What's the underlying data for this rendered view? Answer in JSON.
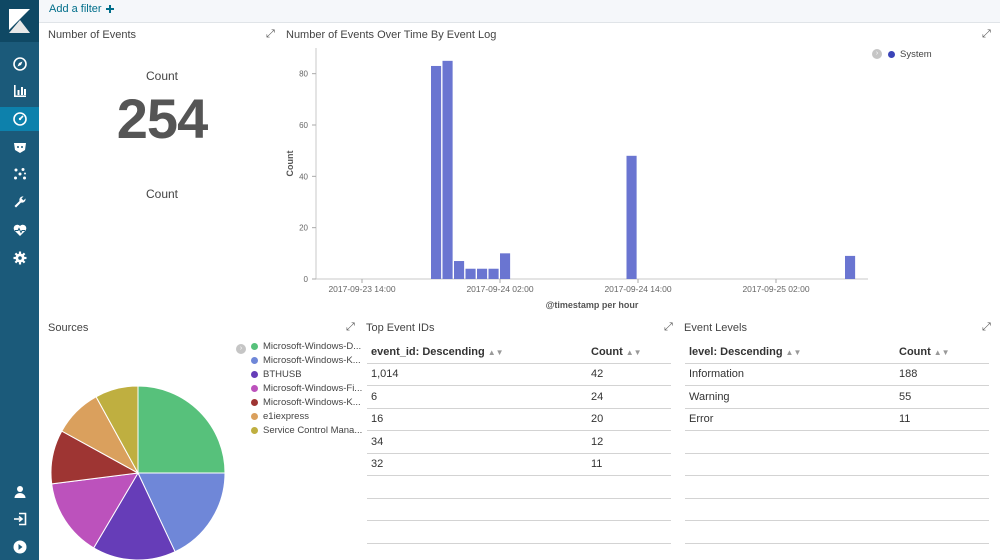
{
  "filter_bar": {
    "add_filter_label": "Add a filter",
    "add_icon": "plus-icon"
  },
  "sidebar": {
    "logo": "kibana-logo",
    "items": [
      {
        "icon": "compass-icon",
        "label": "Discover"
      },
      {
        "icon": "bar-chart-icon",
        "label": "Visualize"
      },
      {
        "icon": "dashboard-icon",
        "label": "Dashboard",
        "active": true
      },
      {
        "icon": "timelion-icon",
        "label": "Timelion"
      },
      {
        "icon": "graph-icon",
        "label": "Graph"
      },
      {
        "icon": "wrench-icon",
        "label": "Dev Tools"
      },
      {
        "icon": "heartbeat-icon",
        "label": "Monitoring"
      },
      {
        "icon": "gear-icon",
        "label": "Management"
      }
    ],
    "bottom": [
      {
        "icon": "user-icon",
        "label": "User"
      },
      {
        "icon": "logout-icon",
        "label": "Logout"
      },
      {
        "icon": "collapse-icon",
        "label": "Collapse"
      }
    ]
  },
  "panels": {
    "events": {
      "title": "Number of Events",
      "label_top": "Count",
      "value": "254",
      "label_bottom": "Count"
    },
    "timeline": {
      "title": "Number of Events Over Time By Event Log"
    },
    "sources": {
      "title": "Sources"
    },
    "top_ids": {
      "title": "Top Event IDs"
    },
    "levels": {
      "title": "Event Levels"
    }
  },
  "chart_data": [
    {
      "type": "bar",
      "title": "Number of Events Over Time By Event Log",
      "xlabel": "@timestamp per hour",
      "ylabel": "Count",
      "ylim": [
        0,
        90
      ],
      "yticks": [
        0,
        20,
        40,
        60,
        80
      ],
      "xticks": [
        "2017-09-23 14:00",
        "2017-09-24 02:00",
        "2017-09-24 14:00",
        "2017-09-25 02:00"
      ],
      "legend_position": "top-right",
      "series": [
        {
          "name": "System",
          "color": "#6a75d1",
          "points": [
            {
              "x": "2017-09-23 20:00",
              "y": 83
            },
            {
              "x": "2017-09-23 21:00",
              "y": 85
            },
            {
              "x": "2017-09-23 22:00",
              "y": 7
            },
            {
              "x": "2017-09-23 23:00",
              "y": 4
            },
            {
              "x": "2017-09-24 00:00",
              "y": 4
            },
            {
              "x": "2017-09-24 01:00",
              "y": 4
            },
            {
              "x": "2017-09-24 02:00",
              "y": 10
            },
            {
              "x": "2017-09-24 13:00",
              "y": 48
            },
            {
              "x": "2017-09-25 08:00",
              "y": 9
            }
          ]
        }
      ]
    },
    {
      "type": "pie",
      "title": "Sources",
      "legend_position": "top-right",
      "slices": [
        {
          "label": "Microsoft-Windows-D...",
          "value": 0.25,
          "color": "#57c17b"
        },
        {
          "label": "Microsoft-Windows-K...",
          "value": 0.18,
          "color": "#6f87d8"
        },
        {
          "label": "BTHUSB",
          "value": 0.155,
          "color": "#663db8"
        },
        {
          "label": "Microsoft-Windows-Fi...",
          "value": 0.145,
          "color": "#bc52bc"
        },
        {
          "label": "Microsoft-Windows-K...",
          "value": 0.1,
          "color": "#9e3533"
        },
        {
          "label": "e1iexpress",
          "value": 0.09,
          "color": "#daa05d"
        },
        {
          "label": "Service Control Mana...",
          "value": 0.08,
          "color": "#bfaf40"
        }
      ]
    },
    {
      "type": "table",
      "title": "Top Event IDs",
      "columns": [
        "event_id: Descending",
        "Count"
      ],
      "rows": [
        [
          "1,014",
          "42"
        ],
        [
          "6",
          "24"
        ],
        [
          "16",
          "20"
        ],
        [
          "34",
          "12"
        ],
        [
          "32",
          "11"
        ]
      ]
    },
    {
      "type": "table",
      "title": "Event Levels",
      "columns": [
        "level: Descending",
        "Count"
      ],
      "rows": [
        [
          "Information",
          "188"
        ],
        [
          "Warning",
          "55"
        ],
        [
          "Error",
          "11"
        ]
      ]
    }
  ]
}
